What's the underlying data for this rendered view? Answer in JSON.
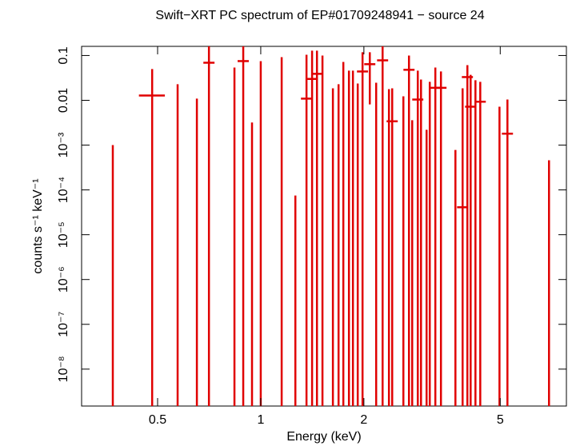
{
  "chart_data": {
    "type": "errorbar",
    "title": "Swift−XRT PC spectrum of EP#01709248941 − source 24",
    "x_label": "Energy (keV)",
    "y_label": "counts s⁻¹ keV⁻¹",
    "xscale": "log",
    "yscale": "log",
    "xlim": [
      0.3,
      7.8
    ],
    "ylim": [
      1.5e-09,
      0.16
    ],
    "xticks": [
      0.5,
      1,
      2,
      5
    ],
    "yticks": [
      0.1,
      0.01,
      {
        "value": 0.001,
        "label": "10⁻³"
      },
      {
        "value": 0.0001,
        "label": "10⁻⁴"
      },
      {
        "value": 1e-05,
        "label": "10⁻⁵"
      },
      {
        "value": 1e-06,
        "label": "10⁻⁶"
      },
      {
        "value": 1e-07,
        "label": "10⁻⁷"
      },
      {
        "value": 1e-08,
        "label": "10⁻⁸"
      }
    ],
    "color": "#e00000",
    "x": [
      0.37,
      0.482,
      0.572,
      0.651,
      0.706,
      0.838,
      0.889,
      0.943,
      1.0,
      1.151,
      1.262,
      1.36,
      1.412,
      1.459,
      1.514,
      1.624,
      1.687,
      1.742,
      1.809,
      1.858,
      1.919,
      1.982,
      2.081,
      2.172,
      2.268,
      2.367,
      2.419,
      2.608,
      2.708,
      2.767,
      2.873,
      2.936,
      3.048,
      3.114,
      3.233,
      3.357,
      3.7,
      3.883,
      4.01,
      4.098,
      4.233,
      4.372,
      4.975,
      5.248,
      6.94
    ],
    "y": [
      null,
      0.0128,
      null,
      null,
      0.069,
      null,
      0.075,
      null,
      null,
      null,
      null,
      0.0109,
      0.03,
      0.039,
      null,
      null,
      null,
      null,
      null,
      null,
      null,
      0.044,
      0.064,
      null,
      0.078,
      null,
      0.0034,
      null,
      0.048,
      null,
      0.0104,
      null,
      null,
      null,
      0.019,
      0.019,
      null,
      4.1e-05,
      0.033,
      0.0072,
      null,
      0.0093,
      null,
      0.0018,
      null
    ],
    "xlow": [
      null,
      0.441,
      null,
      null,
      0.68,
      null,
      0.856,
      null,
      null,
      null,
      null,
      1.31,
      1.36,
      1.406,
      null,
      null,
      null,
      null,
      null,
      null,
      null,
      1.909,
      2.005,
      null,
      2.185,
      null,
      2.33,
      null,
      2.609,
      null,
      2.768,
      null,
      null,
      null,
      3.115,
      3.234,
      null,
      3.741,
      3.863,
      3.948,
      null,
      4.212,
      null,
      5.056,
      null
    ],
    "xhigh": [
      null,
      0.525,
      null,
      null,
      0.733,
      null,
      0.923,
      null,
      null,
      null,
      null,
      1.412,
      1.466,
      1.514,
      null,
      null,
      null,
      null,
      null,
      null,
      null,
      2.057,
      2.16,
      null,
      2.354,
      null,
      2.511,
      null,
      2.811,
      null,
      2.982,
      null,
      null,
      null,
      3.356,
      3.485,
      null,
      4.031,
      4.162,
      4.254,
      null,
      4.538,
      null,
      5.447,
      null
    ],
    "ylow": [
      null,
      null,
      null,
      null,
      null,
      null,
      null,
      null,
      null,
      null,
      null,
      null,
      null,
      null,
      null,
      null,
      null,
      null,
      null,
      null,
      null,
      null,
      0.0081,
      null,
      null,
      null,
      null,
      null,
      null,
      null,
      null,
      null,
      null,
      null,
      null,
      null,
      null,
      null,
      null,
      null,
      null,
      null,
      null,
      null,
      null
    ],
    "yhigh": [
      0.001,
      0.05,
      0.0228,
      0.0109,
      0.2,
      0.054,
      0.2,
      0.0032,
      0.075,
      0.092,
      7.5e-05,
      0.104,
      0.128,
      0.128,
      0.1,
      0.0185,
      0.0228,
      0.072,
      0.046,
      0.046,
      0.0237,
      0.118,
      0.118,
      0.0247,
      0.2,
      0.0178,
      0.0185,
      0.0123,
      0.1,
      0.0036,
      0.046,
      0.0291,
      0.0022,
      0.0258,
      0.054,
      0.044,
      0.00078,
      0.0185,
      0.061,
      0.037,
      0.028,
      0.0258,
      0.0072,
      0.0104,
      0.00046
    ]
  }
}
